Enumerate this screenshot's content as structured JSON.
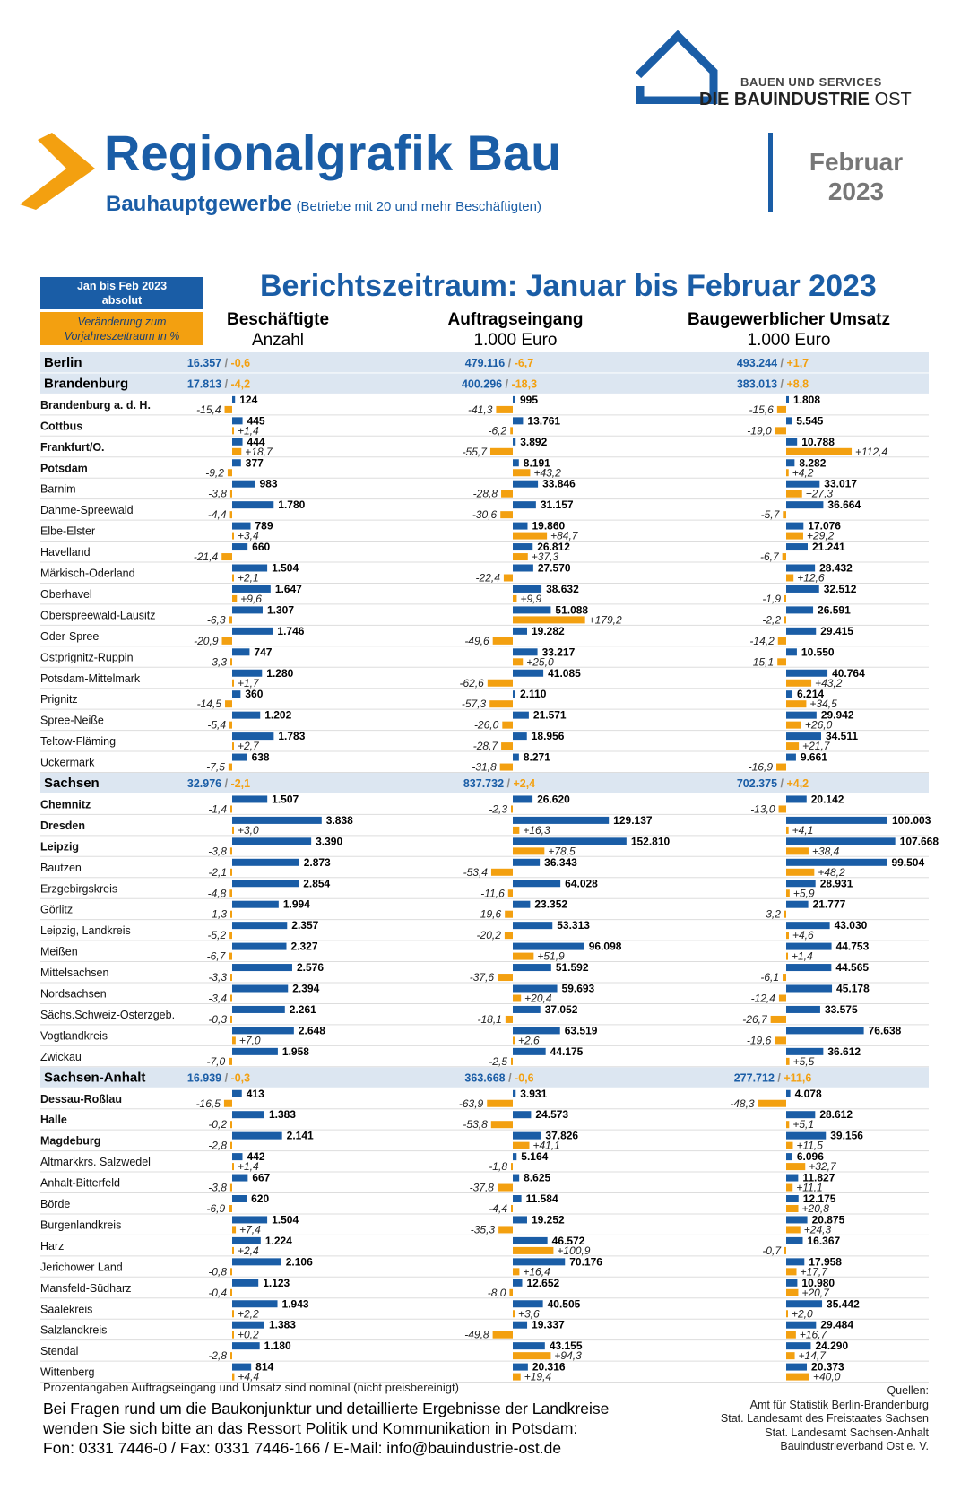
{
  "brand": {
    "line1": "BAUEN UND SERVICES",
    "line2a": "DIE BAUINDUSTRIE",
    "line2b": "OST"
  },
  "header": {
    "title": "Regionalgrafik Bau",
    "subtitle": "Bauhauptgewerbe",
    "subtitle_note": "(Betriebe mit 20 und mehr Beschäftigten)",
    "month": "Februar",
    "year": "2023"
  },
  "legend": {
    "absolute_line1": "Jan bis Feb 2023",
    "absolute_line2": "absolut",
    "change_line1": "Veränderung zum",
    "change_line2": "Vorjahreszeitraum in %"
  },
  "report_title": "Berichtszeitraum: Januar bis Februar 2023",
  "columns": [
    {
      "title": "Beschäftigte",
      "unit": "Anzahl"
    },
    {
      "title": "Auftragseingang",
      "unit": "1.000 Euro"
    },
    {
      "title": "Baugewerblicher Umsatz",
      "unit": "1.000 Euro"
    }
  ],
  "colors": {
    "blue": "#1a5da6",
    "orange": "#f3a010",
    "band": "#dce6f1"
  },
  "chart_data": {
    "type": "bar",
    "series_names": [
      "Beschäftigte",
      "Auftragseingang",
      "Baugewerblicher Umsatz"
    ],
    "states_ungrouped": [
      {
        "name": "Berlin",
        "totals": [
          {
            "abs": "16.357",
            "chg": "-0,6"
          },
          {
            "abs": "479.116",
            "chg": "-6,7"
          },
          {
            "abs": "493.244",
            "chg": "+1,7"
          }
        ]
      }
    ],
    "groups": [
      {
        "name": "Brandenburg",
        "totals": [
          {
            "abs": "17.813",
            "chg": "-4,2"
          },
          {
            "abs": "400.296",
            "chg": "-18,3"
          },
          {
            "abs": "383.013",
            "chg": "+8,8"
          }
        ],
        "rows": [
          {
            "name": "Brandenburg a. d. H.",
            "bold": true,
            "v": [
              [
                124,
                -15.4
              ],
              [
                995,
                -41.3
              ],
              [
                1808,
                -15.6
              ]
            ]
          },
          {
            "name": "Cottbus",
            "bold": true,
            "v": [
              [
                445,
                1.4
              ],
              [
                13761,
                -6.2
              ],
              [
                5545,
                -19.0
              ]
            ]
          },
          {
            "name": "Frankfurt/O.",
            "bold": true,
            "v": [
              [
                444,
                18.7
              ],
              [
                3892,
                -55.7
              ],
              [
                10788,
                112.4
              ]
            ]
          },
          {
            "name": "Potsdam",
            "bold": true,
            "v": [
              [
                377,
                -9.2
              ],
              [
                8191,
                43.2
              ],
              [
                8282,
                4.2
              ]
            ]
          },
          {
            "name": "Barnim",
            "bold": false,
            "v": [
              [
                983,
                -3.8
              ],
              [
                33846,
                -28.8
              ],
              [
                33017,
                27.3
              ]
            ]
          },
          {
            "name": "Dahme-Spreewald",
            "bold": false,
            "v": [
              [
                1780,
                -4.4
              ],
              [
                31157,
                -30.6
              ],
              [
                36664,
                -5.7
              ]
            ]
          },
          {
            "name": "Elbe-Elster",
            "bold": false,
            "v": [
              [
                789,
                3.4
              ],
              [
                19860,
                84.7
              ],
              [
                17076,
                29.2
              ]
            ]
          },
          {
            "name": "Havelland",
            "bold": false,
            "v": [
              [
                660,
                -21.4
              ],
              [
                26812,
                37.3
              ],
              [
                21241,
                -6.7
              ]
            ]
          },
          {
            "name": "Märkisch-Oderland",
            "bold": false,
            "v": [
              [
                1504,
                2.1
              ],
              [
                27570,
                -22.4
              ],
              [
                28432,
                12.6
              ]
            ]
          },
          {
            "name": "Oberhavel",
            "bold": false,
            "v": [
              [
                1647,
                9.6
              ],
              [
                38632,
                9.9
              ],
              [
                32512,
                -1.9
              ]
            ]
          },
          {
            "name": "Oberspreewald-Lausitz",
            "bold": false,
            "v": [
              [
                1307,
                -6.3
              ],
              [
                51088,
                179.2
              ],
              [
                26591,
                -2.2
              ]
            ]
          },
          {
            "name": "Oder-Spree",
            "bold": false,
            "v": [
              [
                1746,
                -20.9
              ],
              [
                19282,
                -49.6
              ],
              [
                29415,
                -14.2
              ]
            ]
          },
          {
            "name": "Ostprignitz-Ruppin",
            "bold": false,
            "v": [
              [
                747,
                -3.3
              ],
              [
                33217,
                25.0
              ],
              [
                10550,
                -15.1
              ]
            ]
          },
          {
            "name": "Potsdam-Mittelmark",
            "bold": false,
            "v": [
              [
                1280,
                1.7
              ],
              [
                41085,
                -62.6
              ],
              [
                40764,
                43.2
              ]
            ]
          },
          {
            "name": "Prignitz",
            "bold": false,
            "v": [
              [
                360,
                -14.5
              ],
              [
                2110,
                -57.3
              ],
              [
                6214,
                34.5
              ]
            ]
          },
          {
            "name": "Spree-Neiße",
            "bold": false,
            "v": [
              [
                1202,
                -5.4
              ],
              [
                21571,
                -26.0
              ],
              [
                29942,
                26.0
              ]
            ]
          },
          {
            "name": "Teltow-Fläming",
            "bold": false,
            "v": [
              [
                1783,
                2.7
              ],
              [
                18956,
                -28.7
              ],
              [
                34511,
                21.7
              ]
            ]
          },
          {
            "name": "Uckermark",
            "bold": false,
            "v": [
              [
                638,
                -7.5
              ],
              [
                8271,
                -31.8
              ],
              [
                9661,
                -16.9
              ]
            ]
          }
        ]
      },
      {
        "name": "Sachsen",
        "totals": [
          {
            "abs": "32.976",
            "chg": "-2,1"
          },
          {
            "abs": "837.732",
            "chg": "+2,4"
          },
          {
            "abs": "702.375",
            "chg": "+4,2"
          }
        ],
        "rows": [
          {
            "name": "Chemnitz",
            "bold": true,
            "v": [
              [
                1507,
                -1.4
              ],
              [
                26620,
                -2.3
              ],
              [
                20142,
                -13.0
              ]
            ]
          },
          {
            "name": "Dresden",
            "bold": true,
            "v": [
              [
                3838,
                3.0
              ],
              [
                129137,
                16.3
              ],
              [
                100003,
                4.1
              ]
            ]
          },
          {
            "name": "Leipzig",
            "bold": true,
            "v": [
              [
                3390,
                -3.8
              ],
              [
                152810,
                78.5
              ],
              [
                107668,
                38.4
              ]
            ]
          },
          {
            "name": "Bautzen",
            "bold": false,
            "v": [
              [
                2873,
                -2.1
              ],
              [
                36343,
                -53.4
              ],
              [
                99504,
                48.2
              ]
            ]
          },
          {
            "name": "Erzgebirgskreis",
            "bold": false,
            "v": [
              [
                2854,
                -4.8
              ],
              [
                64028,
                -11.6
              ],
              [
                28931,
                5.9
              ]
            ]
          },
          {
            "name": "Görlitz",
            "bold": false,
            "v": [
              [
                1994,
                -1.3
              ],
              [
                23352,
                -19.6
              ],
              [
                21777,
                -3.2
              ]
            ]
          },
          {
            "name": "Leipzig, Landkreis",
            "bold": false,
            "v": [
              [
                2357,
                -5.2
              ],
              [
                53313,
                -20.2
              ],
              [
                43030,
                4.6
              ]
            ]
          },
          {
            "name": "Meißen",
            "bold": false,
            "v": [
              [
                2327,
                -6.7
              ],
              [
                96098,
                51.9
              ],
              [
                44753,
                1.4
              ]
            ]
          },
          {
            "name": "Mittelsachsen",
            "bold": false,
            "v": [
              [
                2576,
                -3.3
              ],
              [
                51592,
                -37.6
              ],
              [
                44565,
                -6.1
              ]
            ]
          },
          {
            "name": "Nordsachsen",
            "bold": false,
            "v": [
              [
                2394,
                -3.4
              ],
              [
                59693,
                20.4
              ],
              [
                45178,
                -12.4
              ]
            ]
          },
          {
            "name": "Sächs.Schweiz-Osterzgeb.",
            "bold": false,
            "v": [
              [
                2261,
                -0.3
              ],
              [
                37052,
                -18.1
              ],
              [
                33575,
                -26.7
              ]
            ]
          },
          {
            "name": "Vogtlandkreis",
            "bold": false,
            "v": [
              [
                2648,
                7.0
              ],
              [
                63519,
                2.6
              ],
              [
                76638,
                -19.6
              ]
            ]
          },
          {
            "name": "Zwickau",
            "bold": false,
            "v": [
              [
                1958,
                -7.0
              ],
              [
                44175,
                -2.5
              ],
              [
                36612,
                5.5
              ]
            ]
          }
        ]
      },
      {
        "name": "Sachsen-Anhalt",
        "totals": [
          {
            "abs": "16.939",
            "chg": "-0,3"
          },
          {
            "abs": "363.668",
            "chg": "-0,6"
          },
          {
            "abs": "277.712",
            "chg": "+11,6"
          }
        ],
        "rows": [
          {
            "name": "Dessau-Roßlau",
            "bold": true,
            "v": [
              [
                413,
                -16.5
              ],
              [
                3931,
                -63.9
              ],
              [
                4078,
                -48.3
              ]
            ]
          },
          {
            "name": "Halle",
            "bold": true,
            "v": [
              [
                1383,
                -0.2
              ],
              [
                24573,
                -53.8
              ],
              [
                28612,
                5.1
              ]
            ]
          },
          {
            "name": "Magdeburg",
            "bold": true,
            "v": [
              [
                2141,
                -2.8
              ],
              [
                37826,
                41.1
              ],
              [
                39156,
                11.5
              ]
            ]
          },
          {
            "name": "Altmarkkrs. Salzwedel",
            "bold": false,
            "v": [
              [
                442,
                1.4
              ],
              [
                5164,
                -1.8
              ],
              [
                6096,
                32.7
              ]
            ]
          },
          {
            "name": "Anhalt-Bitterfeld",
            "bold": false,
            "v": [
              [
                667,
                -3.8
              ],
              [
                8625,
                -37.8
              ],
              [
                11827,
                11.1
              ]
            ]
          },
          {
            "name": "Börde",
            "bold": false,
            "v": [
              [
                620,
                -6.9
              ],
              [
                11584,
                -4.4
              ],
              [
                12175,
                20.8
              ]
            ]
          },
          {
            "name": "Burgenlandkreis",
            "bold": false,
            "v": [
              [
                1504,
                7.4
              ],
              [
                19252,
                -35.3
              ],
              [
                20875,
                24.3
              ]
            ]
          },
          {
            "name": "Harz",
            "bold": false,
            "v": [
              [
                1224,
                2.4
              ],
              [
                46572,
                100.9
              ],
              [
                16367,
                -0.7
              ]
            ]
          },
          {
            "name": "Jerichower Land",
            "bold": false,
            "v": [
              [
                2106,
                -0.8
              ],
              [
                70176,
                16.4
              ],
              [
                17958,
                17.7
              ]
            ]
          },
          {
            "name": "Mansfeld-Südharz",
            "bold": false,
            "v": [
              [
                1123,
                -0.4
              ],
              [
                12652,
                -8.0
              ],
              [
                10980,
                20.7
              ]
            ]
          },
          {
            "name": "Saalekreis",
            "bold": false,
            "v": [
              [
                1943,
                2.2
              ],
              [
                40505,
                3.6
              ],
              [
                35442,
                2.0
              ]
            ]
          },
          {
            "name": "Salzlandkreis",
            "bold": false,
            "v": [
              [
                1383,
                0.2
              ],
              [
                19337,
                -49.8
              ],
              [
                29484,
                16.7
              ]
            ]
          },
          {
            "name": "Stendal",
            "bold": false,
            "v": [
              [
                1180,
                -2.8
              ],
              [
                43155,
                94.3
              ],
              [
                24290,
                14.7
              ]
            ]
          },
          {
            "name": "Wittenberg",
            "bold": false,
            "v": [
              [
                814,
                4.4
              ],
              [
                20316,
                19.4
              ],
              [
                20373,
                40.0
              ]
            ]
          }
        ]
      }
    ]
  },
  "footer": {
    "note": "Prozentangaben Auftragseingang und Umsatz sind nominal (nicht preisbereinigt)",
    "contact1": "Bei Fragen rund um die Baukonjunktur und detaillierte Ergebnisse der Landkreise",
    "contact2": "wenden Sie sich bitte an das Ressort Politik und Kommunikation in Potsdam:",
    "contact3": "Fon: 0331 7446-0 / Fax: 0331 7446-166 / E-Mail: info@bauindustrie-ost.de",
    "sources_title": "Quellen:",
    "sources": [
      "Amt für Statistik Berlin-Brandenburg",
      "Stat. Landesamt des Freistaates Sachsen",
      "Stat. Landesamt Sachsen-Anhalt",
      "Bauindustrieverband Ost e. V."
    ]
  }
}
